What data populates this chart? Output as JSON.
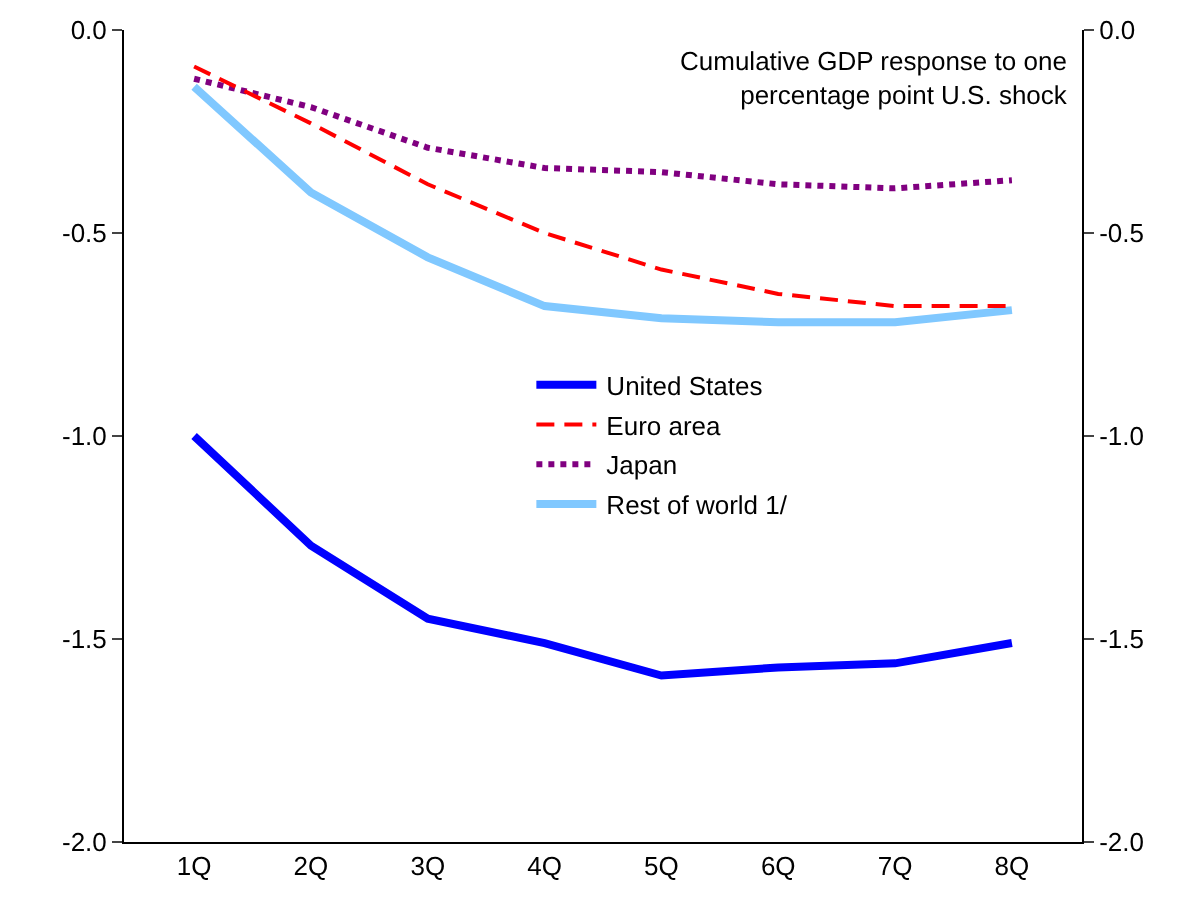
{
  "chart_data": {
    "type": "line",
    "title": "Cumulative GDP response to one\npercentage point U.S. shock",
    "categories": [
      "1Q",
      "2Q",
      "3Q",
      "4Q",
      "5Q",
      "6Q",
      "7Q",
      "8Q"
    ],
    "series": [
      {
        "name": "United States",
        "color": "#0000ff",
        "line_style": "solid",
        "values": [
          -1.0,
          -1.27,
          -1.45,
          -1.51,
          -1.59,
          -1.57,
          -1.56,
          -1.51
        ]
      },
      {
        "name": "Euro area",
        "color": "#ff0000",
        "line_style": "dashed",
        "values": [
          -0.09,
          -0.23,
          -0.38,
          -0.5,
          -0.59,
          -0.65,
          -0.68,
          -0.68
        ]
      },
      {
        "name": "Japan",
        "color": "#800080",
        "line_style": "dotted",
        "values": [
          -0.12,
          -0.19,
          -0.29,
          -0.34,
          -0.35,
          -0.38,
          -0.39,
          -0.37
        ]
      },
      {
        "name": "Rest of world 1/",
        "color": "#80c8ff",
        "line_style": "solid",
        "values": [
          -0.14,
          -0.4,
          -0.56,
          -0.68,
          -0.71,
          -0.72,
          -0.72,
          -0.69
        ]
      }
    ],
    "ylim": [
      -2.0,
      0.0
    ],
    "yticks": [
      {
        "value": -2,
        "label": "-2.0"
      },
      {
        "value": -1.5,
        "label": "-1.5"
      },
      {
        "value": -1,
        "label": "-1.0"
      },
      {
        "value": -0.5,
        "label": "-0.5"
      },
      {
        "value": 0,
        "label": "0.0"
      }
    ],
    "y2lim": [
      -2.0,
      0.0
    ],
    "y2ticks": [
      {
        "value": -2,
        "label": "-2.0"
      },
      {
        "value": -1.5,
        "label": "-1.5"
      },
      {
        "value": -1,
        "label": "-1.0"
      },
      {
        "value": -0.5,
        "label": "-0.5"
      },
      {
        "value": 0,
        "label": "0.0"
      }
    ],
    "grid": false,
    "legend": "center",
    "marker": "none"
  }
}
